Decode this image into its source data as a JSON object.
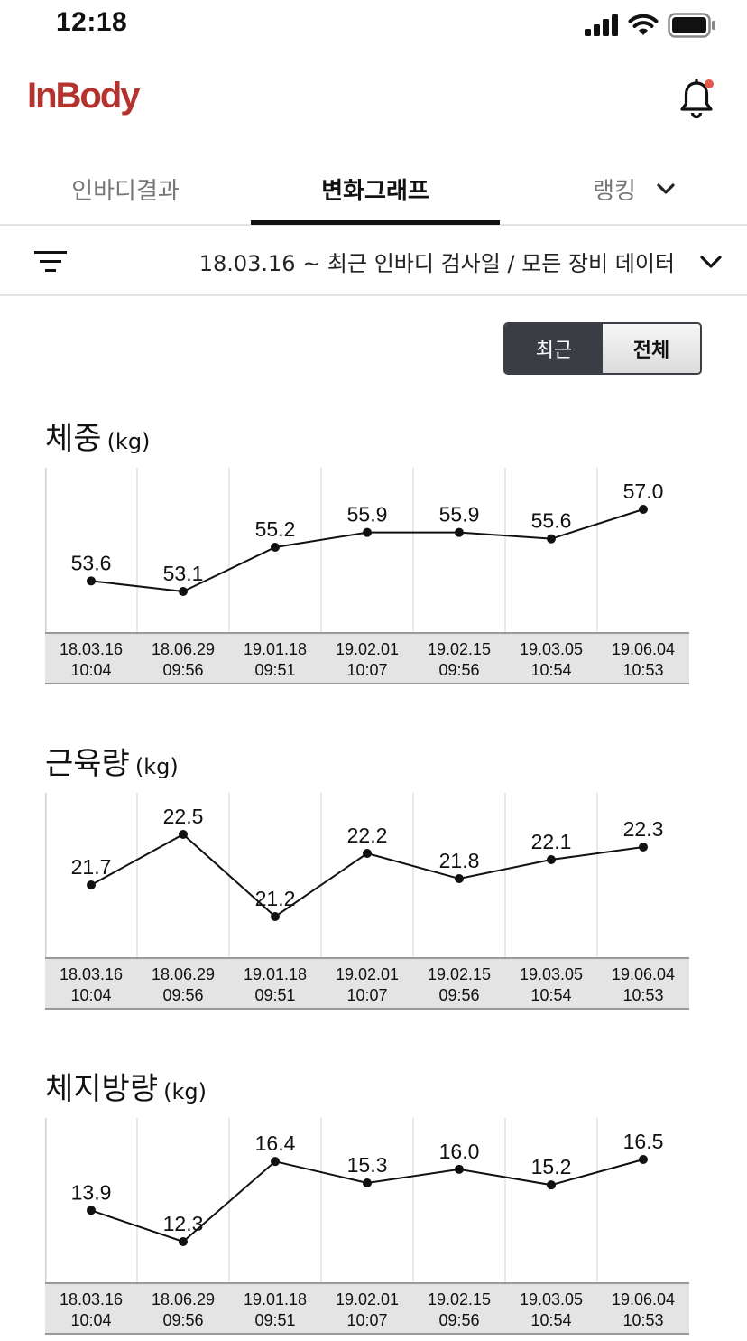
{
  "status_bar": {
    "time": "12:18"
  },
  "header": {
    "brand": "InBody"
  },
  "tabs": [
    {
      "label": "인바디결과",
      "active": false
    },
    {
      "label": "변화그래프",
      "active": true
    },
    {
      "label": "랭킹",
      "active": false
    }
  ],
  "filter": {
    "text": "18.03.16 ~ 최근 인바디 검사일 / 모든 장비 데이터"
  },
  "segment": {
    "recent": "최근",
    "all": "전체"
  },
  "colors": {
    "brand": "#b5332e",
    "notification_dot": "#e4584b",
    "segment_active": "#3a3d43"
  },
  "chart_data": [
    {
      "type": "line",
      "title": "체중",
      "unit": "(kg)",
      "x": [
        {
          "date": "18.03.16",
          "time": "10:04"
        },
        {
          "date": "18.06.29",
          "time": "09:56"
        },
        {
          "date": "19.01.18",
          "time": "09:51"
        },
        {
          "date": "19.02.01",
          "time": "10:07"
        },
        {
          "date": "19.02.15",
          "time": "09:56"
        },
        {
          "date": "19.03.05",
          "time": "10:54"
        },
        {
          "date": "19.06.04",
          "time": "10:53"
        }
      ],
      "values": [
        53.6,
        53.1,
        55.2,
        55.9,
        55.9,
        55.6,
        57.0
      ],
      "labels": [
        "53.6",
        "53.1",
        "55.2",
        "55.9",
        "55.9",
        "55.6",
        "57.0"
      ]
    },
    {
      "type": "line",
      "title": "근육량",
      "unit": "(kg)",
      "x": [
        {
          "date": "18.03.16",
          "time": "10:04"
        },
        {
          "date": "18.06.29",
          "time": "09:56"
        },
        {
          "date": "19.01.18",
          "time": "09:51"
        },
        {
          "date": "19.02.01",
          "time": "10:07"
        },
        {
          "date": "19.02.15",
          "time": "09:56"
        },
        {
          "date": "19.03.05",
          "time": "10:54"
        },
        {
          "date": "19.06.04",
          "time": "10:53"
        }
      ],
      "values": [
        21.7,
        22.5,
        21.2,
        22.2,
        21.8,
        22.1,
        22.3
      ],
      "labels": [
        "21.7",
        "22.5",
        "21.2",
        "22.2",
        "21.8",
        "22.1",
        "22.3"
      ]
    },
    {
      "type": "line",
      "title": "체지방량",
      "unit": "(kg)",
      "x": [
        {
          "date": "18.03.16",
          "time": "10:04"
        },
        {
          "date": "18.06.29",
          "time": "09:56"
        },
        {
          "date": "19.01.18",
          "time": "09:51"
        },
        {
          "date": "19.02.01",
          "time": "10:07"
        },
        {
          "date": "19.02.15",
          "time": "09:56"
        },
        {
          "date": "19.03.05",
          "time": "10:54"
        },
        {
          "date": "19.06.04",
          "time": "10:53"
        }
      ],
      "values": [
        13.9,
        12.3,
        16.4,
        15.3,
        16.0,
        15.2,
        16.5
      ],
      "labels": [
        "13.9",
        "12.3",
        "16.4",
        "15.3",
        "16.0",
        "15.2",
        "16.5"
      ]
    }
  ]
}
